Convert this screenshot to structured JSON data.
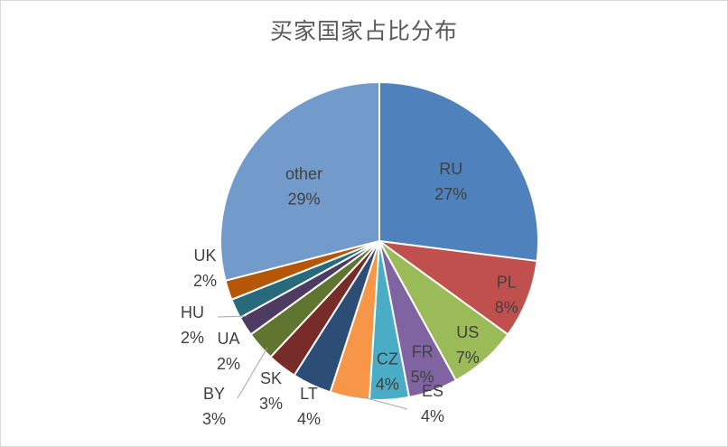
{
  "chart_data": {
    "type": "pie",
    "title": "买家国家占比分布",
    "slices": [
      {
        "label": "RU",
        "value": 27,
        "value_label": "27%",
        "color": "#4f81bd"
      },
      {
        "label": "PL",
        "value": 8,
        "value_label": "8%",
        "color": "#c0504d"
      },
      {
        "label": "US",
        "value": 7,
        "value_label": "7%",
        "color": "#9bbb59"
      },
      {
        "label": "FR",
        "value": 5,
        "value_label": "5%",
        "color": "#8064a2"
      },
      {
        "label": "CZ",
        "value": 4,
        "value_label": "4%",
        "color": "#4bacc6"
      },
      {
        "label": "ES",
        "value": 4,
        "value_label": "4%",
        "color": "#f79646"
      },
      {
        "label": "LT",
        "value": 4,
        "value_label": "4%",
        "color": "#2c4d75"
      },
      {
        "label": "SK",
        "value": 3,
        "value_label": "3%",
        "color": "#772c2a"
      },
      {
        "label": "BY",
        "value": 3,
        "value_label": "3%",
        "color": "#5f7530"
      },
      {
        "label": "UA",
        "value": 2,
        "value_label": "2%",
        "color": "#4d3b62"
      },
      {
        "label": "HU",
        "value": 2,
        "value_label": "2%",
        "color": "#276a7c"
      },
      {
        "label": "UK",
        "value": 2,
        "value_label": "2%",
        "color": "#b65708"
      },
      {
        "label": "other",
        "value": 29,
        "value_label": "29%",
        "color": "#729aca"
      }
    ]
  }
}
